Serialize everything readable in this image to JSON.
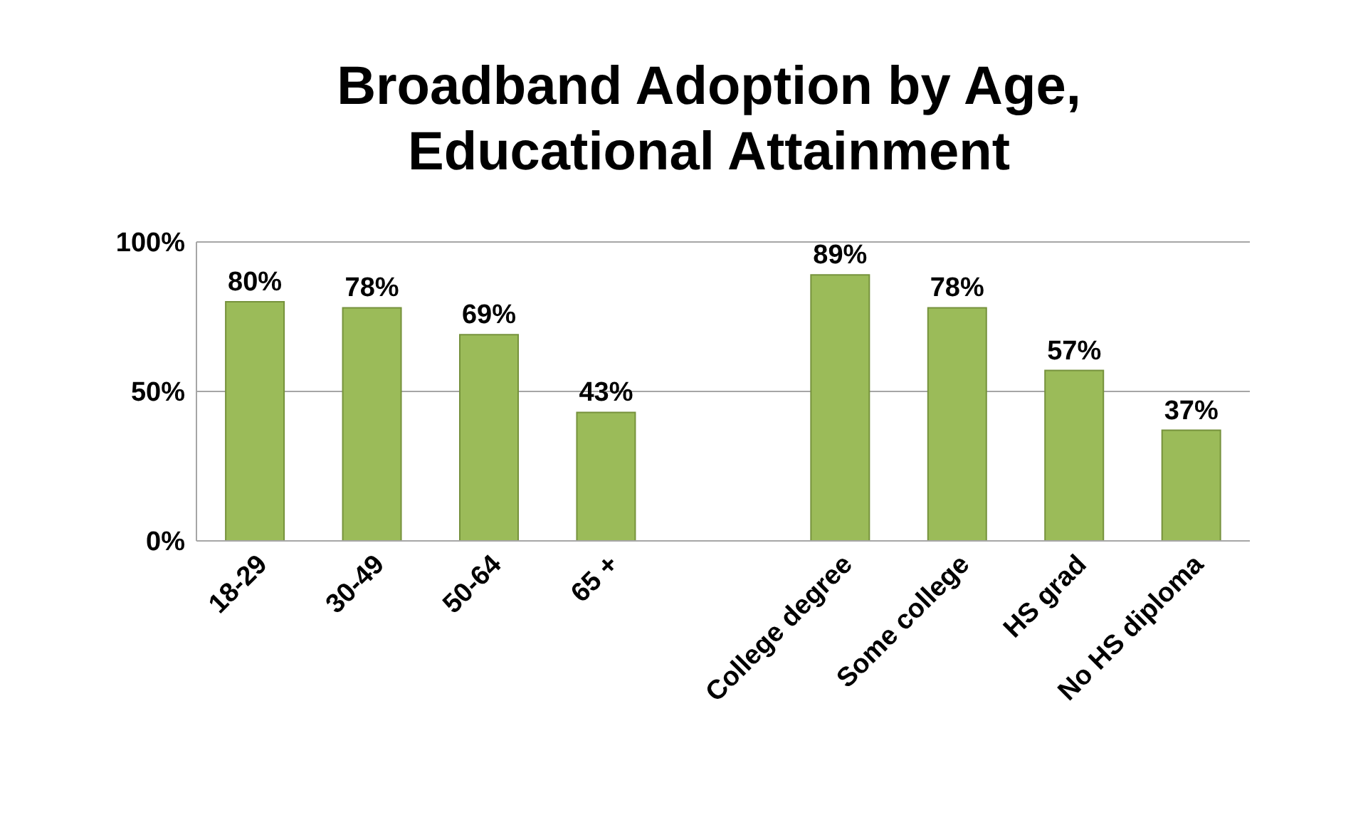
{
  "chart_data": {
    "type": "bar",
    "title": "Broadband Adoption by Age, Educational Attainment",
    "categories": [
      "18-29",
      "30-49",
      "50-64",
      "65 +",
      null,
      "College degree",
      "Some college",
      "HS grad",
      "No HS diploma"
    ],
    "values": [
      80,
      78,
      69,
      43,
      null,
      89,
      78,
      57,
      37
    ],
    "value_labels": [
      "80%",
      "78%",
      "69%",
      "43%",
      null,
      "89%",
      "78%",
      "57%",
      "37%"
    ],
    "color": "#9bbb59",
    "ylim": [
      0,
      100
    ],
    "yticks": [
      {
        "value": 0,
        "label": "0%"
      },
      {
        "value": 50,
        "label": "50%"
      },
      {
        "value": 100,
        "label": "100%"
      }
    ],
    "grid": "y"
  }
}
